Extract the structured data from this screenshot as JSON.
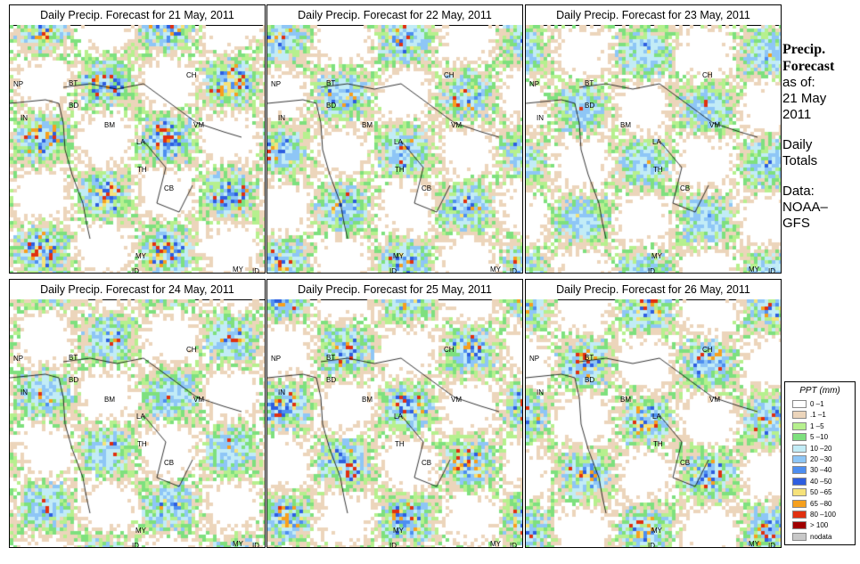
{
  "panels": [
    {
      "title": "Daily Precip. Forecast for  21 May, 2011",
      "intensity": 1.0
    },
    {
      "title": "Daily Precip. Forecast for  22 May, 2011",
      "intensity": 0.85
    },
    {
      "title": "Daily Precip. Forecast for  23 May, 2011",
      "intensity": 0.6
    },
    {
      "title": "Daily Precip. Forecast for  24 May, 2011",
      "intensity": 0.75
    },
    {
      "title": "Daily Precip. Forecast for  25 May, 2011",
      "intensity": 0.95
    },
    {
      "title": "Daily Precip. Forecast for  26 May, 2011",
      "intensity": 0.9
    }
  ],
  "country_labels": [
    "NP",
    "BT",
    "BD",
    "IN",
    "BM",
    "CH",
    "VM",
    "LA",
    "TH",
    "CB",
    "MY",
    "ID",
    "MY",
    "ID",
    "CH"
  ],
  "sidebar": {
    "heading1": "Precip.",
    "heading2": "Forecast",
    "asof": "as of:",
    "date1": "21 May",
    "date2": "2011",
    "totals1": "Daily",
    "totals2": "Totals",
    "data1": "Data:",
    "data2": "NOAA–",
    "data3": "GFS"
  },
  "legend": {
    "title": "PPT (mm)",
    "items": [
      {
        "label": "0 –1",
        "color": "#ffffff"
      },
      {
        "label": ".1 –1",
        "color": "#ecd5bb"
      },
      {
        "label": "1 –5",
        "color": "#b6f08e"
      },
      {
        "label": "5 –10",
        "color": "#7ee07e"
      },
      {
        "label": "10 –20",
        "color": "#c2ecf6"
      },
      {
        "label": "20 –30",
        "color": "#8ec6f6"
      },
      {
        "label": "30 –40",
        "color": "#4e8ef0"
      },
      {
        "label": "40 –50",
        "color": "#2e5ee0"
      },
      {
        "label": "50 –65",
        "color": "#f6e27a"
      },
      {
        "label": "65 –80",
        "color": "#f6a01e"
      },
      {
        "label": "80 –100",
        "color": "#e03010"
      },
      {
        "label": "> 100",
        "color": "#a00000"
      },
      {
        "label": "nodata",
        "color": "#c8c8c8"
      }
    ]
  }
}
